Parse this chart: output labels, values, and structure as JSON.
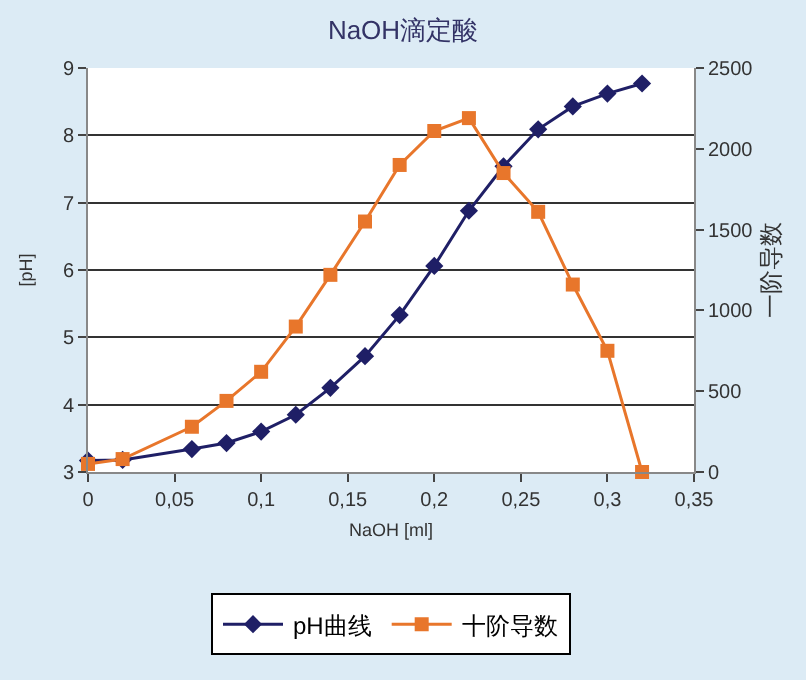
{
  "chart_data": {
    "type": "line",
    "title": "NaOH滴定酸",
    "xlabel": "NaOH [ml]",
    "ylabel": "[pH]",
    "y2label": "一阶导数",
    "x": [
      0,
      0.02,
      0.06,
      0.08,
      0.1,
      0.12,
      0.14,
      0.16,
      0.18,
      0.2,
      0.22,
      0.24,
      0.26,
      0.28,
      0.3,
      0.32
    ],
    "series": [
      {
        "name": "pH曲线",
        "color": "#1f1f66",
        "marker": "diamond",
        "values": [
          3.17,
          3.18,
          3.34,
          3.43,
          3.6,
          3.85,
          4.25,
          4.72,
          5.33,
          6.06,
          6.88,
          7.54,
          8.09,
          8.43,
          8.62,
          8.77
        ]
      },
      {
        "name": "十阶导数",
        "color": "#e8762b",
        "marker": "square",
        "axis": "y2",
        "values": [
          50,
          80,
          280,
          440,
          620,
          900,
          1220,
          1550,
          1900,
          2110,
          2190,
          1850,
          1610,
          1160,
          750,
          0
        ]
      }
    ],
    "xlim": [
      0,
      0.35
    ],
    "xticks": [
      0,
      {
        "value": 0.05,
        "label": "0,05"
      },
      {
        "value": 0.1,
        "label": "0,1"
      },
      {
        "value": 0.15,
        "label": "0,15"
      },
      {
        "value": 0.2,
        "label": "0,2"
      },
      {
        "value": 0.25,
        "label": "0,25"
      },
      {
        "value": 0.3,
        "label": "0,3"
      },
      {
        "value": 0.35,
        "label": "0,35"
      }
    ],
    "ylim": [
      3,
      9
    ],
    "yticks": [
      3,
      4,
      5,
      6,
      7,
      8,
      9
    ],
    "y2lim": [
      0,
      2500
    ],
    "y2ticks": [
      0,
      500,
      1000,
      1500,
      2000,
      2500
    ],
    "grid": "y",
    "legend": "bottom",
    "line_style": "solid"
  }
}
